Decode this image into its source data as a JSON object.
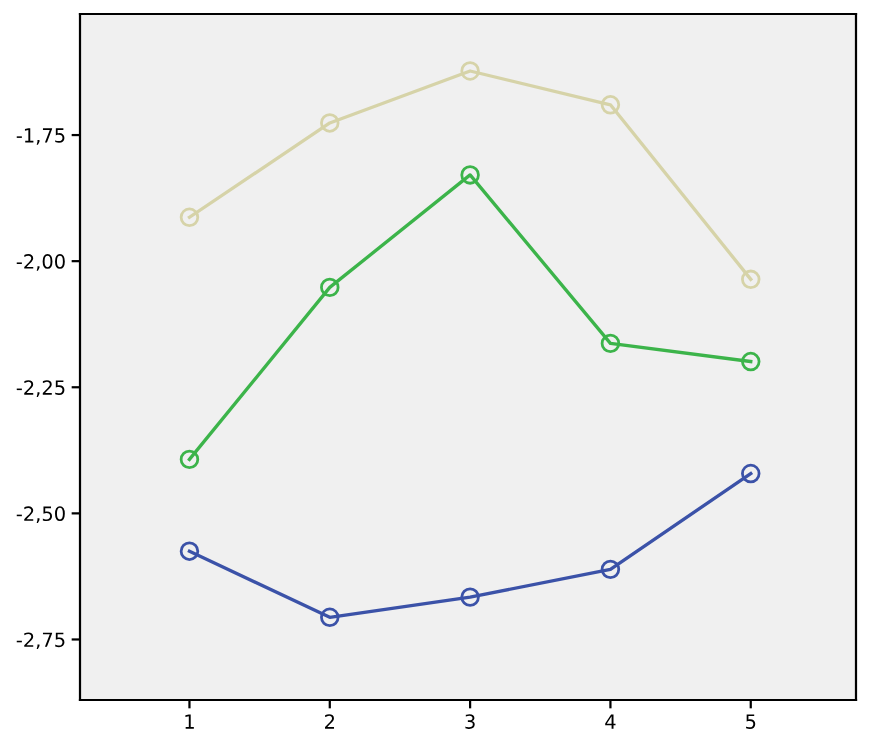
{
  "chart_data": {
    "type": "line",
    "x": [
      1,
      2,
      3,
      4,
      5
    ],
    "series": [
      {
        "color": "#d6d3a8",
        "values": [
          -1.913,
          -1.726,
          -1.623,
          -1.69,
          -2.036
        ]
      },
      {
        "color": "#3cb44a",
        "values": [
          -2.393,
          -2.052,
          -1.829,
          -2.163,
          -2.199
        ]
      },
      {
        "color": "#3b52a8",
        "values": [
          -2.575,
          -2.706,
          -2.666,
          -2.611,
          -2.421
        ]
      }
    ],
    "xlim": [
      0.22,
      5.75
    ],
    "ylim": [
      -2.87,
      -1.51
    ],
    "xticks": [
      1,
      2,
      3,
      4,
      5
    ],
    "yticks": [
      {
        "value": -1.75,
        "label": "-1,75"
      },
      {
        "value": -2.0,
        "label": "-2,00"
      },
      {
        "value": -2.25,
        "label": "-2,25"
      },
      {
        "value": -2.5,
        "label": "-2,50"
      },
      {
        "value": -2.75,
        "label": "-2,75"
      }
    ],
    "marker": "circle",
    "line_style": "solid",
    "grid": false,
    "legend": false
  }
}
